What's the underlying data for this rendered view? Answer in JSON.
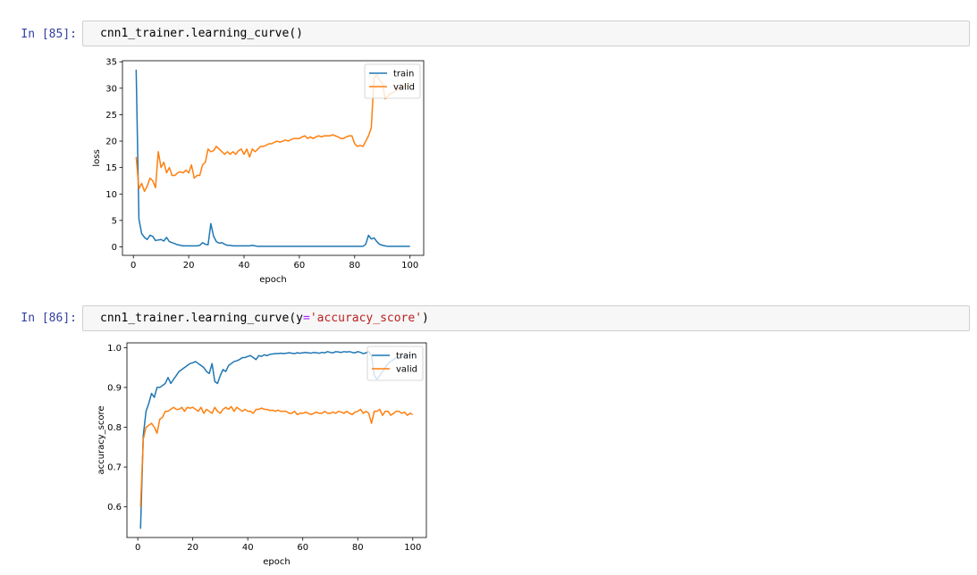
{
  "cells": [
    {
      "prompt": "In [85]:",
      "code": [
        "cnn1_trainer.learning_curve()"
      ]
    },
    {
      "prompt": "In [86]:",
      "code": [
        "cnn1_trainer.learning_curve(",
        "y",
        "=",
        "'accuracy_score'",
        ")"
      ]
    }
  ],
  "chart_data": [
    {
      "type": "line",
      "xlabel": "epoch",
      "ylabel": "loss",
      "legend": "upper right",
      "x": [
        1,
        2,
        3,
        4,
        5,
        6,
        7,
        8,
        9,
        10,
        11,
        12,
        13,
        14,
        15,
        16,
        17,
        18,
        19,
        20,
        21,
        22,
        23,
        24,
        25,
        26,
        27,
        28,
        29,
        30,
        31,
        32,
        33,
        34,
        35,
        36,
        37,
        38,
        39,
        40,
        41,
        42,
        43,
        44,
        45,
        46,
        47,
        48,
        49,
        50,
        51,
        52,
        53,
        54,
        55,
        56,
        57,
        58,
        59,
        60,
        61,
        62,
        63,
        64,
        65,
        66,
        67,
        68,
        69,
        70,
        71,
        72,
        73,
        74,
        75,
        76,
        77,
        78,
        79,
        80,
        81,
        82,
        83,
        84,
        85,
        86,
        87,
        88,
        89,
        90,
        91,
        92,
        93,
        94,
        95,
        96,
        97,
        98,
        99,
        100
      ],
      "xlim": [
        -3.95,
        104.95
      ],
      "xticks": [
        0,
        20,
        40,
        60,
        80,
        100
      ],
      "ylim": [
        -1.6,
        35.2
      ],
      "yticks": [
        0,
        5,
        10,
        15,
        20,
        25,
        30,
        35
      ],
      "series": [
        {
          "name": "train",
          "color": "#1f77b4",
          "values": [
            33.5,
            5.3,
            2.5,
            1.8,
            1.4,
            2.2,
            2,
            1.2,
            1.3,
            1.4,
            1.1,
            1.8,
            1,
            0.8,
            0.6,
            0.4,
            0.3,
            0.2,
            0.2,
            0.2,
            0.2,
            0.2,
            0.2,
            0.3,
            0.8,
            0.5,
            0.4,
            4.4,
            2,
            1,
            0.7,
            0.8,
            0.5,
            0.3,
            0.3,
            0.2,
            0.2,
            0.2,
            0.2,
            0.2,
            0.2,
            0.2,
            0.3,
            0.2,
            0.1,
            0.1,
            0.1,
            0.1,
            0.1,
            0.1,
            0.1,
            0.1,
            0.1,
            0.1,
            0.1,
            0.1,
            0.1,
            0.1,
            0.1,
            0.1,
            0.1,
            0.1,
            0.1,
            0.1,
            0.1,
            0.1,
            0.1,
            0.1,
            0.1,
            0.1,
            0.1,
            0.1,
            0.1,
            0.1,
            0.1,
            0.1,
            0.1,
            0.1,
            0.1,
            0.1,
            0.1,
            0.1,
            0.1,
            0.5,
            2.2,
            1.5,
            1.7,
            1,
            0.5,
            0.3,
            0.2,
            0.1,
            0.1,
            0.1,
            0.1,
            0.1,
            0.1,
            0.1,
            0.1,
            0.1
          ]
        },
        {
          "name": "valid",
          "color": "#ff7f0e",
          "values": [
            17,
            11,
            12,
            10.5,
            11.5,
            13,
            12.5,
            11.2,
            18,
            15,
            16,
            14,
            15,
            13.5,
            13.5,
            14,
            14.2,
            14,
            14.5,
            14,
            15.5,
            13,
            13.5,
            13.5,
            15.5,
            16,
            18.5,
            18,
            18.2,
            19,
            18.5,
            18,
            17.5,
            18,
            17.5,
            18,
            17.5,
            18.2,
            18.5,
            17.5,
            18.5,
            17,
            18.5,
            18,
            18.5,
            19,
            19,
            19.2,
            19.5,
            19.5,
            19.8,
            20,
            19.8,
            20,
            20.2,
            20,
            20.3,
            20.5,
            20.5,
            20.5,
            20.8,
            21,
            20.5,
            20.8,
            20.5,
            20.8,
            21,
            20.8,
            21,
            21,
            21,
            21.2,
            21,
            20.8,
            20.5,
            20.5,
            20.8,
            21,
            21,
            19.5,
            19,
            19.2,
            19,
            20,
            21,
            22.5,
            32,
            32.5,
            31.5,
            31,
            28,
            28.5,
            29,
            29.2,
            29.5,
            30,
            30,
            30.5,
            30.5,
            31
          ]
        }
      ]
    },
    {
      "type": "line",
      "xlabel": "epoch",
      "ylabel": "accuracy_score",
      "legend": "upper right",
      "x": [
        1,
        2,
        3,
        4,
        5,
        6,
        7,
        8,
        9,
        10,
        11,
        12,
        13,
        14,
        15,
        16,
        17,
        18,
        19,
        20,
        21,
        22,
        23,
        24,
        25,
        26,
        27,
        28,
        29,
        30,
        31,
        32,
        33,
        34,
        35,
        36,
        37,
        38,
        39,
        40,
        41,
        42,
        43,
        44,
        45,
        46,
        47,
        48,
        49,
        50,
        51,
        52,
        53,
        54,
        55,
        56,
        57,
        58,
        59,
        60,
        61,
        62,
        63,
        64,
        65,
        66,
        67,
        68,
        69,
        70,
        71,
        72,
        73,
        74,
        75,
        76,
        77,
        78,
        79,
        80,
        81,
        82,
        83,
        84,
        85,
        86,
        87,
        88,
        89,
        90,
        91,
        92,
        93,
        94,
        95,
        96,
        97,
        98,
        99,
        100
      ],
      "xlim": [
        -3.95,
        104.95
      ],
      "xticks": [
        0,
        20,
        40,
        60,
        80,
        100
      ],
      "ylim": [
        0.523,
        1.012
      ],
      "yticks": [
        0.6,
        0.7,
        0.8,
        0.9,
        {
          "value": 1,
          "label": "1.0"
        }
      ],
      "series": [
        {
          "name": "train",
          "color": "#1f77b4",
          "values": [
            0.545,
            0.78,
            0.84,
            0.86,
            0.885,
            0.875,
            0.9,
            0.9,
            0.905,
            0.91,
            0.925,
            0.91,
            0.92,
            0.93,
            0.94,
            0.945,
            0.95,
            0.955,
            0.96,
            0.962,
            0.965,
            0.96,
            0.955,
            0.95,
            0.94,
            0.935,
            0.96,
            0.915,
            0.91,
            0.93,
            0.945,
            0.94,
            0.955,
            0.96,
            0.965,
            0.967,
            0.97,
            0.975,
            0.975,
            0.978,
            0.98,
            0.975,
            0.97,
            0.98,
            0.978,
            0.982,
            0.98,
            0.983,
            0.984,
            0.985,
            0.985,
            0.986,
            0.985,
            0.986,
            0.987,
            0.986,
            0.985,
            0.987,
            0.986,
            0.987,
            0.988,
            0.987,
            0.986,
            0.988,
            0.987,
            0.986,
            0.988,
            0.987,
            0.99,
            0.988,
            0.987,
            0.99,
            0.989,
            0.988,
            0.99,
            0.989,
            0.99,
            0.988,
            0.987,
            0.99,
            0.988,
            0.985,
            0.987,
            0.99,
            0.98,
            0.93,
            0.92,
            0.93,
            0.94,
            0.95,
            0.96,
            0.965,
            0.97,
            0.975,
            0.975,
            0.978,
            0.98,
            0.98,
            0.982,
            0.983
          ]
        },
        {
          "name": "valid",
          "color": "#ff7f0e",
          "values": [
            0.6,
            0.77,
            0.8,
            0.805,
            0.81,
            0.8,
            0.785,
            0.82,
            0.825,
            0.84,
            0.84,
            0.845,
            0.85,
            0.845,
            0.845,
            0.85,
            0.84,
            0.85,
            0.848,
            0.85,
            0.845,
            0.84,
            0.85,
            0.835,
            0.845,
            0.84,
            0.835,
            0.85,
            0.84,
            0.835,
            0.845,
            0.85,
            0.845,
            0.852,
            0.84,
            0.85,
            0.845,
            0.84,
            0.845,
            0.84,
            0.84,
            0.835,
            0.845,
            0.845,
            0.848,
            0.845,
            0.845,
            0.842,
            0.843,
            0.84,
            0.843,
            0.84,
            0.84,
            0.84,
            0.835,
            0.835,
            0.84,
            0.832,
            0.835,
            0.835,
            0.838,
            0.835,
            0.832,
            0.835,
            0.838,
            0.835,
            0.835,
            0.84,
            0.835,
            0.835,
            0.838,
            0.835,
            0.84,
            0.838,
            0.835,
            0.84,
            0.835,
            0.832,
            0.838,
            0.84,
            0.845,
            0.835,
            0.84,
            0.835,
            0.81,
            0.84,
            0.84,
            0.845,
            0.83,
            0.84,
            0.84,
            0.83,
            0.835,
            0.84,
            0.84,
            0.835,
            0.838,
            0.83,
            0.835,
            0.832
          ]
        }
      ]
    }
  ]
}
